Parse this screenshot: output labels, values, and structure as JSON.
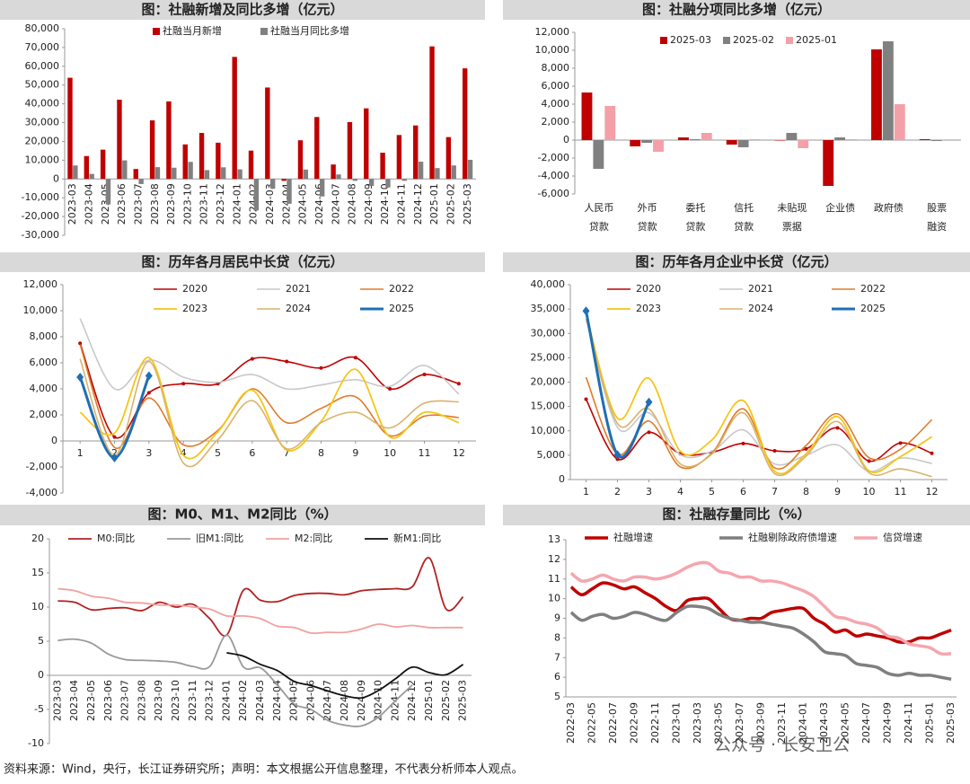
{
  "chart_data": [
    {
      "type": "bar",
      "title": "图：社融新增及同比多增（亿元）",
      "categories": [
        "2023-03",
        "2023-04",
        "2023-05",
        "2023-06",
        "2023-07",
        "2023-08",
        "2023-09",
        "2023-10",
        "2023-11",
        "2023-12",
        "2024-01",
        "2024-02",
        "2024-03",
        "2024-04",
        "2024-05",
        "2024-06",
        "2024-07",
        "2024-08",
        "2024-09",
        "2024-10",
        "2024-11",
        "2024-12",
        "2025-01",
        "2025-02",
        "2025-03"
      ],
      "series": [
        {
          "name": "社融当月新增",
          "color": "#c00000",
          "values": [
            53900,
            12200,
            15600,
            42200,
            5300,
            31200,
            41300,
            18400,
            24500,
            19300,
            65000,
            15100,
            48700,
            -1000,
            20600,
            33000,
            7700,
            30300,
            37600,
            14000,
            23400,
            28500,
            70600,
            22300,
            58900
          ]
        },
        {
          "name": "社融当月同比多增",
          "color": "#808080",
          "values": [
            7200,
            2700,
            -13600,
            9900,
            -2700,
            6300,
            6000,
            9100,
            4700,
            6200,
            5100,
            -16800,
            -5200,
            -13200,
            5000,
            -9300,
            2400,
            -1000,
            -3700,
            -4500,
            -1000,
            9200,
            5800,
            7200,
            10200
          ]
        }
      ],
      "ylim": [
        -30000,
        80000
      ],
      "yticks": [
        {
          "value": 80000,
          "label": "80,000"
        },
        {
          "value": 70000,
          "label": "70,000"
        },
        {
          "value": 60000,
          "label": "60,000"
        },
        {
          "value": 50000,
          "label": "50,000"
        },
        {
          "value": 40000,
          "label": "40,000"
        },
        {
          "value": 30000,
          "label": "30,000"
        },
        {
          "value": 20000,
          "label": "20,000"
        },
        {
          "value": 10000,
          "label": "10,000"
        },
        0,
        {
          "value": -10000,
          "label": "-10,000"
        },
        {
          "value": -20000,
          "label": "-20,000"
        },
        {
          "value": -30000,
          "label": "-30,000"
        }
      ],
      "grid": false
    },
    {
      "type": "bar",
      "title": "图：社融分项同比多增（亿元）",
      "categories": [
        [
          "人民币",
          "贷款"
        ],
        [
          "外币",
          "贷款"
        ],
        [
          "委托",
          "贷款"
        ],
        [
          "信托",
          "贷款"
        ],
        [
          "未贴现",
          "票据"
        ],
        [
          "企业债"
        ],
        [
          "政府债"
        ],
        [
          "股票",
          "融资"
        ]
      ],
      "series": [
        {
          "name": "2025-03",
          "color": "#c00000",
          "values": [
            5300,
            -700,
            300,
            -500,
            -50,
            -5100,
            10100,
            100
          ]
        },
        {
          "name": "2025-02",
          "color": "#808080",
          "values": [
            -3200,
            -300,
            100,
            -800,
            800,
            300,
            11000,
            -100
          ]
        },
        {
          "name": "2025-01",
          "color": "#f4a0a8",
          "values": [
            3800,
            -1300,
            800,
            100,
            -900,
            100,
            4000,
            0
          ]
        }
      ],
      "ylim": [
        -6000,
        12000
      ],
      "yticks": [
        {
          "value": 12000,
          "label": "12,000"
        },
        {
          "value": 10000,
          "label": "10,000"
        },
        {
          "value": 8000,
          "label": "8,000"
        },
        {
          "value": 6000,
          "label": "6,000"
        },
        {
          "value": 4000,
          "label": "4,000"
        },
        {
          "value": 2000,
          "label": "2,000"
        },
        0,
        {
          "value": -2000,
          "label": "-2,000"
        },
        {
          "value": -4000,
          "label": "-4,000"
        },
        {
          "value": -6000,
          "label": "-6,000"
        }
      ],
      "grid": false
    },
    {
      "type": "line",
      "title": "图：历年各月居民中长贷（亿元）",
      "x": [
        1,
        2,
        3,
        4,
        5,
        6,
        7,
        8,
        9,
        10,
        11,
        12
      ],
      "series": [
        {
          "name": "2020",
          "color": "#c00000",
          "values": [
            7500,
            300,
            3700,
            4400,
            4400,
            6300,
            6100,
            5600,
            6400,
            4000,
            5100,
            4400
          ]
        },
        {
          "name": "2021",
          "color": "#c8c8c8",
          "values": [
            9400,
            4000,
            6200,
            4900,
            4500,
            5100,
            4000,
            4300,
            4700,
            4200,
            5800,
            3600
          ]
        },
        {
          "name": "2022",
          "color": "#e07b2a",
          "values": [
            7400,
            -500,
            3300,
            -300,
            800,
            4000,
            1400,
            2500,
            3400,
            400,
            1900,
            1800
          ]
        },
        {
          "name": "2023",
          "color": "#f5c518",
          "values": [
            2200,
            600,
            6400,
            -1100,
            700,
            3900,
            -700,
            1500,
            5500,
            300,
            2200,
            1400
          ]
        },
        {
          "name": "2024",
          "color": "#d9b36b",
          "values": [
            6300,
            -1100,
            6100,
            -1700,
            100,
            3100,
            -600,
            1400,
            2200,
            1000,
            2900,
            3000
          ]
        },
        {
          "name": "2025",
          "color": "#1f6fb4",
          "values": [
            4900,
            -1300,
            5000,
            null,
            null,
            null,
            null,
            null,
            null,
            null,
            null,
            null
          ]
        }
      ],
      "xlim": [
        0.5,
        12.5
      ],
      "xticks": [
        1,
        2,
        3,
        4,
        5,
        6,
        7,
        8,
        9,
        10,
        11,
        12
      ],
      "ylim": [
        -4000,
        12000
      ],
      "yticks": [
        {
          "value": 12000,
          "label": "12,000"
        },
        {
          "value": 10000,
          "label": "10,000"
        },
        {
          "value": 8000,
          "label": "8,000"
        },
        {
          "value": 6000,
          "label": "6,000"
        },
        {
          "value": 4000,
          "label": "4,000"
        },
        {
          "value": 2000,
          "label": "2,000"
        },
        0,
        {
          "value": -2000,
          "label": "-2,000"
        },
        {
          "value": -4000,
          "label": "-4,000"
        }
      ],
      "grid": false,
      "smooth": true
    },
    {
      "type": "line",
      "title": "图：历年各月企业中长贷（亿元）",
      "x": [
        1,
        2,
        3,
        4,
        5,
        6,
        7,
        8,
        9,
        10,
        11,
        12
      ],
      "series": [
        {
          "name": "2020",
          "color": "#c00000",
          "values": [
            16500,
            4200,
            9700,
            5300,
            5600,
            7400,
            5900,
            6300,
            10600,
            3800,
            7500,
            5400
          ]
        },
        {
          "name": "2021",
          "color": "#c8c8c8",
          "values": [
            33000,
            10700,
            13700,
            5100,
            5800,
            10200,
            3200,
            5000,
            7100,
            1700,
            4400,
            3300
          ]
        },
        {
          "name": "2022",
          "color": "#e07b2a",
          "values": [
            21000,
            5200,
            12000,
            2600,
            5400,
            14500,
            2400,
            7000,
            13500,
            4500,
            6200,
            12300
          ]
        },
        {
          "name": "2023",
          "color": "#f5c518",
          "values": [
            34000,
            12600,
            20800,
            5800,
            8100,
            16200,
            1700,
            5300,
            12900,
            1800,
            4700,
            8800
          ]
        },
        {
          "name": "2024",
          "color": "#d9b36b",
          "values": [
            33000,
            11500,
            14500,
            3200,
            5200,
            13700,
            1200,
            4800,
            11900,
            1400,
            2200,
            600
          ]
        },
        {
          "name": "2025",
          "color": "#1f6fb4",
          "values": [
            34600,
            5100,
            15900,
            null,
            null,
            null,
            null,
            null,
            null,
            null,
            null,
            null
          ]
        }
      ],
      "xlim": [
        0.5,
        12.5
      ],
      "xticks": [
        1,
        2,
        3,
        4,
        5,
        6,
        7,
        8,
        9,
        10,
        11,
        12
      ],
      "ylim": [
        0,
        40000
      ],
      "yticks": [
        {
          "value": 40000,
          "label": "40,000"
        },
        {
          "value": 35000,
          "label": "35,000"
        },
        {
          "value": 30000,
          "label": "30,000"
        },
        {
          "value": 25000,
          "label": "25,000"
        },
        {
          "value": 20000,
          "label": "20,000"
        },
        {
          "value": 15000,
          "label": "15,000"
        },
        {
          "value": 10000,
          "label": "10,000"
        },
        {
          "value": 5000,
          "label": "5,000"
        },
        0
      ],
      "grid": false,
      "smooth": true
    },
    {
      "type": "line",
      "title": "图：M0、M1、M2同比（%）",
      "categories": [
        "2023-03",
        "2023-04",
        "2023-05",
        "2023-06",
        "2023-07",
        "2023-08",
        "2023-09",
        "2023-10",
        "2023-11",
        "2023-12",
        "2024-01",
        "2024-02",
        "2024-03",
        "2024-04",
        "2024-05",
        "2024-06",
        "2024-07",
        "2024-08",
        "2024-09",
        "2024-10",
        "2024-11",
        "2024-12",
        "2025-01",
        "2025-02",
        "2025-03"
      ],
      "series": [
        {
          "name": "M0:同比",
          "color": "#b22222",
          "values": [
            10.9,
            10.7,
            9.6,
            9.8,
            9.9,
            9.5,
            10.7,
            10.0,
            10.4,
            8.3,
            5.9,
            12.5,
            11.0,
            10.8,
            11.7,
            12.0,
            12.0,
            11.8,
            12.4,
            12.6,
            12.7,
            13.0,
            17.2,
            9.7,
            11.5
          ]
        },
        {
          "name": "旧M1:同比",
          "color": "#999999",
          "values": [
            5.1,
            5.3,
            4.7,
            3.1,
            2.3,
            2.2,
            2.1,
            1.9,
            1.3,
            1.3,
            5.9,
            1.2,
            1.1,
            -1.4,
            -4.2,
            -5.0,
            -6.6,
            -7.3,
            -7.4,
            -6.1,
            -3.7,
            -1.4,
            null,
            null,
            null
          ]
        },
        {
          "name": "M2:同比",
          "color": "#f2a0a0",
          "values": [
            12.7,
            12.4,
            11.6,
            11.3,
            10.7,
            10.6,
            10.3,
            10.3,
            10.0,
            9.7,
            8.7,
            8.7,
            8.3,
            7.2,
            7.0,
            6.2,
            6.3,
            6.3,
            6.8,
            7.5,
            7.1,
            7.3,
            7.0,
            7.0,
            7.0
          ]
        },
        {
          "name": "新M1:同比",
          "color": "#111111",
          "values": [
            null,
            null,
            null,
            null,
            null,
            null,
            null,
            null,
            null,
            null,
            3.3,
            2.8,
            1.6,
            0.7,
            -0.9,
            -1.5,
            -2.3,
            -3.0,
            -3.3,
            -2.2,
            -0.5,
            1.2,
            0.4,
            0.1,
            1.6
          ]
        }
      ],
      "ylim": [
        -10,
        20
      ],
      "yticks": [
        20,
        15,
        10,
        5,
        0,
        -5,
        -10
      ],
      "grid": false,
      "smooth": true
    },
    {
      "type": "line",
      "title": "图：社融存量同比（%）",
      "categories": [
        "2022-03",
        null,
        "2022-05",
        null,
        "2022-07",
        null,
        "2022-09",
        null,
        "2022-11",
        null,
        "2023-01",
        null,
        "2023-03",
        null,
        "2023-05",
        null,
        "2023-07",
        null,
        "2023-09",
        null,
        "2023-11",
        null,
        "2024-01",
        null,
        "2024-03",
        null,
        "2024-05",
        null,
        "2024-07",
        null,
        "2024-09",
        null,
        "2024-11",
        null,
        "2025-01",
        null,
        "2025-03"
      ],
      "series": [
        {
          "name": "社融增速",
          "color": "#c00000",
          "values": [
            10.6,
            10.2,
            10.5,
            10.8,
            10.7,
            10.5,
            10.6,
            10.3,
            10.0,
            9.6,
            9.4,
            9.9,
            10.0,
            10.0,
            9.5,
            9.0,
            8.9,
            9.0,
            9.0,
            9.3,
            9.4,
            9.5,
            9.5,
            9.0,
            8.7,
            8.3,
            8.4,
            8.1,
            8.2,
            8.1,
            8.0,
            7.8,
            7.8,
            8.0,
            8.0,
            8.2,
            8.4
          ]
        },
        {
          "name": "社融剔除政府债增速",
          "color": "#7f7f7f",
          "values": [
            9.3,
            8.9,
            9.1,
            9.2,
            9.0,
            9.1,
            9.3,
            9.2,
            9.0,
            8.9,
            9.3,
            9.6,
            9.6,
            9.5,
            9.2,
            9.0,
            8.9,
            8.8,
            8.8,
            8.7,
            8.6,
            8.5,
            8.2,
            7.8,
            7.3,
            7.2,
            7.1,
            6.7,
            6.6,
            6.5,
            6.2,
            6.1,
            6.2,
            6.1,
            6.1,
            6.0,
            5.9
          ]
        },
        {
          "name": "信贷增速",
          "color": "#f4a6ae",
          "values": [
            11.3,
            10.9,
            11.0,
            11.2,
            11.0,
            10.9,
            11.1,
            11.1,
            11.0,
            11.1,
            11.3,
            11.6,
            11.8,
            11.8,
            11.4,
            11.3,
            11.1,
            11.1,
            10.9,
            10.9,
            10.8,
            10.6,
            10.4,
            10.1,
            9.6,
            9.1,
            9.0,
            8.8,
            8.7,
            8.5,
            8.1,
            8.0,
            7.7,
            7.6,
            7.5,
            7.2,
            7.2
          ]
        }
      ],
      "ylim": [
        5,
        13
      ],
      "yticks": [
        13,
        12,
        11,
        10,
        9,
        8,
        7,
        6,
        5
      ],
      "grid": false,
      "smooth": true
    }
  ],
  "footer": "资料来源：Wind，央行，长江证券研究所；声明：本文根据公开信息整理，不代表分析师本人观点。",
  "watermark": "公众号 · 长安卫公"
}
